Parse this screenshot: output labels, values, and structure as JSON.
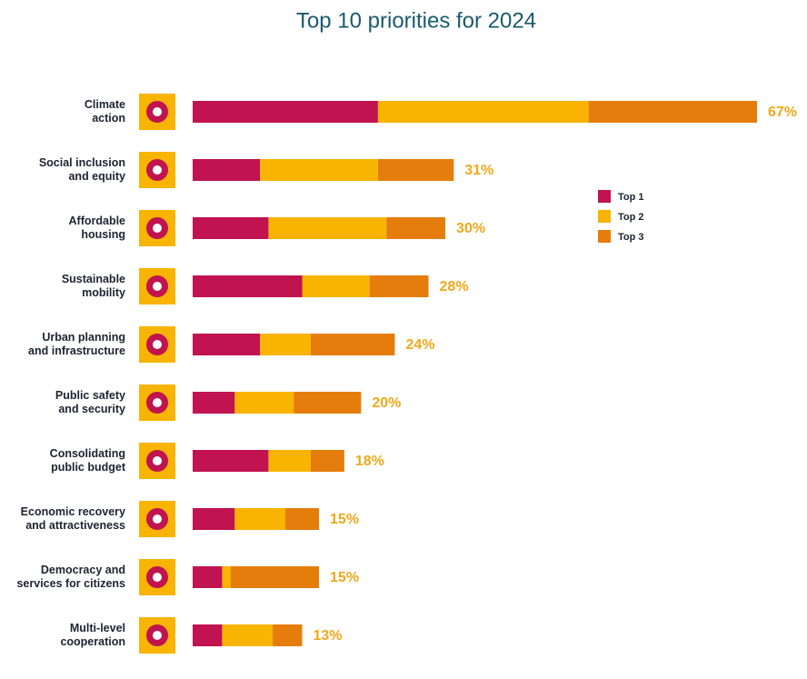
{
  "chart_data": {
    "type": "stacked-barh",
    "title": "Top 10 priorities for 2024",
    "categories": [
      "Climate\naction",
      "Social inclusion\nand equity",
      "Affordable\nhousing",
      "Sustainable\nmobility",
      "Urban planning\nand infrastructure",
      "Public safety\nand security",
      "Consolidating\npublic budget",
      "Economic recovery\nand attractiveness",
      "Democracy and\nservices for citizens",
      "Multi-level\ncooperation"
    ],
    "series": [
      {
        "name": "Top 1",
        "color": "#c0134f",
        "values": [
          22,
          8,
          9,
          13,
          8,
          5,
          9,
          5,
          3.5,
          3.5
        ]
      },
      {
        "name": "Top 2",
        "color": "#f8b400",
        "values": [
          25,
          14,
          14,
          8,
          6,
          7,
          5,
          6,
          1,
          6
        ]
      },
      {
        "name": "Top 3",
        "color": "#e57d0c",
        "values": [
          20,
          9,
          7,
          7,
          10,
          8,
          4,
          4,
          10.5,
          3.5
        ]
      }
    ],
    "totals": [
      67,
      31,
      30,
      28,
      24,
      20,
      18,
      15,
      15,
      13
    ],
    "value_labels": [
      "67%",
      "31%",
      "30%",
      "28%",
      "24%",
      "20%",
      "18%",
      "15%",
      "15%",
      "13%"
    ],
    "xlim": [
      0,
      67
    ]
  }
}
